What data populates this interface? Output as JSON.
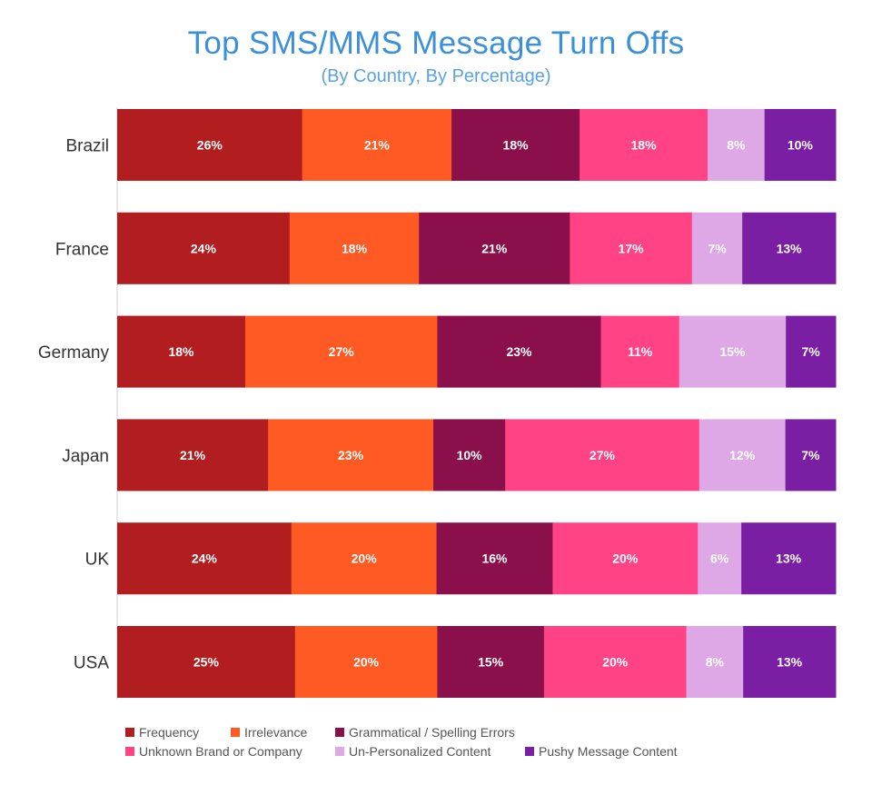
{
  "chart_data": {
    "type": "bar",
    "orientation": "horizontal",
    "stacked": true,
    "title": "Top SMS/MMS Message Turn Offs",
    "subtitle": "(By Country, By Percentage)",
    "categories": [
      "Brazil",
      "France",
      "Germany",
      "Japan",
      "UK",
      "USA"
    ],
    "series": [
      {
        "name": "Frequency",
        "color": "#b21d1f",
        "values": [
          26,
          24,
          18,
          21,
          24,
          25
        ]
      },
      {
        "name": "Irrelevance",
        "color": "#ff5a24",
        "values": [
          21,
          18,
          27,
          23,
          20,
          20
        ]
      },
      {
        "name": "Grammatical / Spelling Errors",
        "color": "#8b0f4b",
        "values": [
          18,
          21,
          23,
          10,
          16,
          15
        ]
      },
      {
        "name": "Unknown Brand or Company",
        "color": "#ff4384",
        "values": [
          18,
          17,
          11,
          27,
          20,
          20
        ]
      },
      {
        "name": "Un-Personalized Content",
        "color": "#dea8e6",
        "values": [
          8,
          7,
          15,
          12,
          6,
          8
        ]
      },
      {
        "name": "Pushy Message Content",
        "color": "#7a1fa3",
        "values": [
          10,
          13,
          7,
          7,
          13,
          13
        ]
      }
    ],
    "data_labels": [
      [
        "26%",
        "21%",
        "18%",
        "18%",
        "8%",
        "10%"
      ],
      [
        "24%",
        "18%",
        "21%",
        "17%",
        "7%",
        "13%"
      ],
      [
        "18%",
        "27%",
        "23%",
        "11%",
        "15%",
        "7%"
      ],
      [
        "21%",
        "23%",
        "10%",
        "27%",
        "12%",
        "7%"
      ],
      [
        "24%",
        "20%",
        "16%",
        "20%",
        "6%",
        "13%"
      ],
      [
        "25%",
        "20%",
        "15%",
        "20%",
        "8%",
        "13%"
      ]
    ],
    "legend_position": "bottom-left",
    "grid": false
  }
}
